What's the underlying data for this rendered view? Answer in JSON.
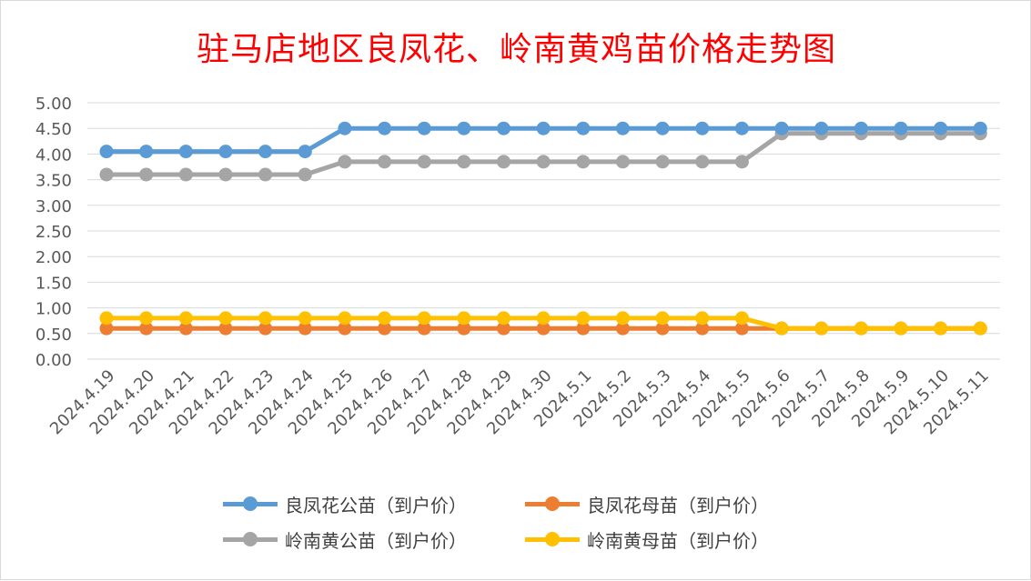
{
  "chart_data": {
    "type": "line",
    "title": "驻马店地区良凤花、岭南黄鸡苗价格走势图",
    "xlabel": "",
    "ylabel": "",
    "categories": [
      "2024.4.19",
      "2024.4.20",
      "2024.4.21",
      "2024.4.22",
      "2024.4.23",
      "2024.4.24",
      "2024.4.25",
      "2024.4.26",
      "2024.4.27",
      "2024.4.28",
      "2024.4.29",
      "2024.4.30",
      "2024.5.1",
      "2024.5.2",
      "2024.5.3",
      "2024.5.4",
      "2024.5.5",
      "2024.5.6",
      "2024.5.7",
      "2024.5.8",
      "2024.5.9",
      "2024.5.10",
      "2024.5.11"
    ],
    "yticks": [
      "5.00",
      "4.50",
      "4.00",
      "3.50",
      "3.00",
      "2.50",
      "2.00",
      "1.50",
      "1.00",
      "0.50",
      "0.00"
    ],
    "ylim": [
      0,
      5
    ],
    "grid": true,
    "legend_position": "bottom",
    "series": [
      {
        "name": "良凤花公苗（到户价）",
        "color": "#5b9bd5",
        "values": [
          4.05,
          4.05,
          4.05,
          4.05,
          4.05,
          4.05,
          4.5,
          4.5,
          4.5,
          4.5,
          4.5,
          4.5,
          4.5,
          4.5,
          4.5,
          4.5,
          4.5,
          4.5,
          4.5,
          4.5,
          4.5,
          4.5,
          4.5
        ]
      },
      {
        "name": "良凤花母苗（到户价）",
        "color": "#ed7d31",
        "values": [
          0.6,
          0.6,
          0.6,
          0.6,
          0.6,
          0.6,
          0.6,
          0.6,
          0.6,
          0.6,
          0.6,
          0.6,
          0.6,
          0.6,
          0.6,
          0.6,
          0.6,
          0.6,
          0.6,
          0.6,
          0.6,
          0.6,
          0.6
        ]
      },
      {
        "name": "岭南黄公苗（到户价）",
        "color": "#a5a5a5",
        "values": [
          3.6,
          3.6,
          3.6,
          3.6,
          3.6,
          3.6,
          3.85,
          3.85,
          3.85,
          3.85,
          3.85,
          3.85,
          3.85,
          3.85,
          3.85,
          3.85,
          3.85,
          4.4,
          4.4,
          4.4,
          4.4,
          4.4,
          4.4
        ]
      },
      {
        "name": "岭南黄母苗（到户价）",
        "color": "#ffc000",
        "values": [
          0.8,
          0.8,
          0.8,
          0.8,
          0.8,
          0.8,
          0.8,
          0.8,
          0.8,
          0.8,
          0.8,
          0.8,
          0.8,
          0.8,
          0.8,
          0.8,
          0.8,
          0.6,
          0.6,
          0.6,
          0.6,
          0.6,
          0.6
        ]
      }
    ]
  }
}
